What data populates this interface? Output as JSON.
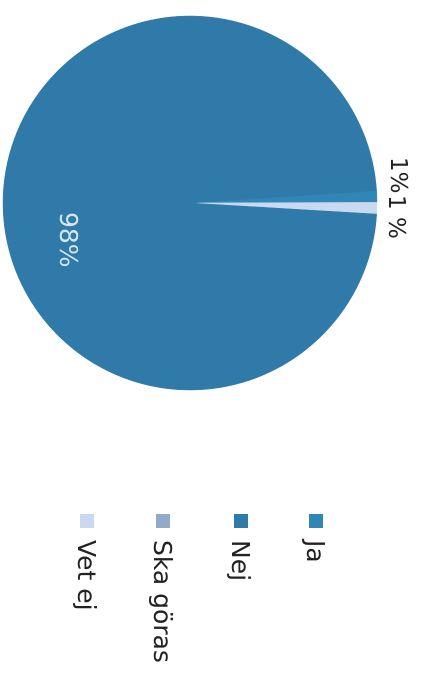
{
  "chart_data": {
    "type": "pie",
    "orientation": "rotated-90-clockwise",
    "slices": [
      {
        "name": "Ja",
        "value": 1,
        "label": "1%",
        "color": "#2f86b7"
      },
      {
        "name": "Nej",
        "value": 98,
        "label": "98%",
        "color": "#2f7aa9"
      },
      {
        "name": "Ska göras",
        "value": 0,
        "label": "",
        "color": "#93a9c9"
      },
      {
        "name": "Vet ej",
        "value": 1,
        "label": "1 %",
        "color": "#c9d9ef"
      }
    ],
    "legend": {
      "placement": "bottom",
      "items": [
        {
          "label": "Ja",
          "color": "#2f86b7"
        },
        {
          "label": "Nej",
          "color": "#2f7aa9"
        },
        {
          "label": "Ska göras",
          "color": "#93a9c9"
        },
        {
          "label": "Vet ej",
          "color": "#c9d9ef"
        }
      ]
    }
  }
}
